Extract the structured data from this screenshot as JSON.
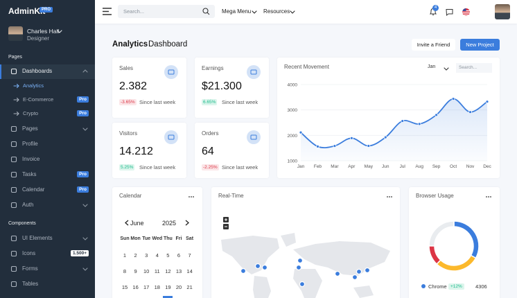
{
  "sidebar": {
    "brand": "AdminKit",
    "brand_badge": "PRO",
    "user": {
      "name": "Charles Hall",
      "role": "Designer"
    },
    "sections": [
      {
        "header": "Pages",
        "items": [
          {
            "label": "Dashboards"
          },
          {
            "label": "Analytics"
          },
          {
            "label": "E-Commerce",
            "badge": "Pro"
          },
          {
            "label": "Crypto",
            "badge": "Pro"
          },
          {
            "label": "Pages"
          },
          {
            "label": "Profile"
          },
          {
            "label": "Invoice"
          },
          {
            "label": "Tasks",
            "badge": "Pro"
          },
          {
            "label": "Calendar",
            "badge": "Pro"
          },
          {
            "label": "Auth"
          }
        ]
      },
      {
        "header": "Components",
        "items": [
          {
            "label": "UI Elements"
          },
          {
            "label": "Icons",
            "badge": "1.500+"
          },
          {
            "label": "Forms"
          },
          {
            "label": "Tables"
          }
        ]
      }
    ]
  },
  "navbar": {
    "search_placeholder": "Search...",
    "menus": [
      "Mega Menu",
      "Resources"
    ],
    "notification_count": 4
  },
  "header": {
    "title_bold": "Analytics",
    "title_rest": "Dashboard",
    "buttons": [
      "Invite a Friend",
      "New Project"
    ]
  },
  "stats": [
    {
      "title": "Sales",
      "value": "2.382",
      "change": "-3.65%",
      "note": "Since last week"
    },
    {
      "title": "Earnings",
      "value": "$21.300",
      "change": "6.65%",
      "note": "Since last week"
    },
    {
      "title": "Visitors",
      "value": "14.212",
      "change": "5.25%",
      "note": "Since last week"
    },
    {
      "title": "Orders",
      "value": "64",
      "change": "-2.25%",
      "note": "Since last week"
    }
  ],
  "recent_movement": {
    "type": "line",
    "title": "Recent Movement",
    "filter": "Jan",
    "search_placeholder": "Search...",
    "categories": [
      "Jan",
      "Feb",
      "Mar",
      "Apr",
      "May",
      "Jun",
      "Jul",
      "Aug",
      "Sep",
      "Oct",
      "Nov",
      "Dec"
    ],
    "values": [
      2115,
      1562,
      1584,
      1892,
      1587,
      1923,
      2566,
      2448,
      2805,
      3438,
      2917,
      3327
    ],
    "color": "#3b7ddd",
    "ylim": [
      1000,
      4000
    ],
    "yticks": [
      1000,
      2000,
      3000,
      4000
    ],
    "grid": true
  },
  "calendar": {
    "title": "Calendar",
    "month": "June",
    "year": "2025",
    "weekdays": [
      "Sun",
      "Mon",
      "Tue",
      "Wed",
      "Thu",
      "Fri",
      "Sat"
    ],
    "weeks": [
      [
        1,
        2,
        3,
        4,
        5,
        6,
        7
      ],
      [
        8,
        9,
        10,
        11,
        12,
        13,
        14
      ],
      [
        15,
        16,
        17,
        18,
        19,
        20,
        21
      ]
    ]
  },
  "realtime": {
    "title": "Real-Time"
  },
  "browser_usage": {
    "type": "doughnut",
    "title": "Browser Usage",
    "series": [
      {
        "name": "Chrome",
        "value": 4306,
        "change": "+12%",
        "color": "#3b7ddd"
      },
      {
        "value": 3801,
        "color": "#fcb92c"
      },
      {
        "value": 1689,
        "color": "#dc3545"
      },
      {
        "value": 3251,
        "color": "#e9ecef"
      }
    ]
  }
}
